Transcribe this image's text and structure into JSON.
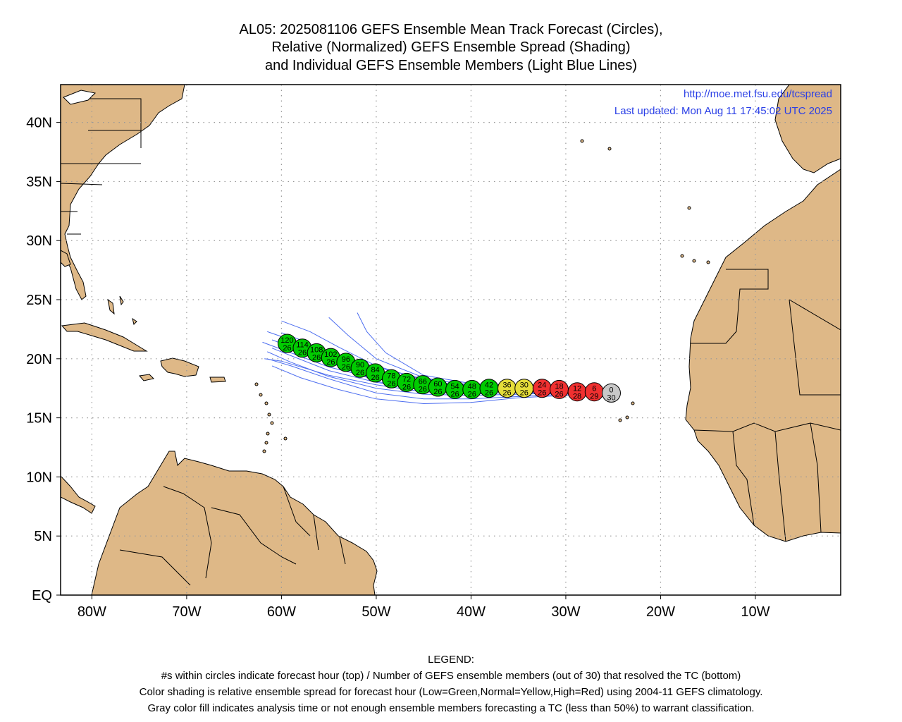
{
  "title": {
    "line1": "AL05: 2025081106 GEFS Ensemble Mean Track Forecast (Circles),",
    "line2": "Relative (Normalized) GEFS Ensemble Spread (Shading)",
    "line3": "and Individual GEFS Ensemble Members (Light Blue Lines)"
  },
  "header_links": {
    "url": "http://moe.met.fsu.edu/tcspread",
    "updated": "Last updated: Mon Aug 11 17:45:02 UTC 2025"
  },
  "axes": {
    "lon_labels": [
      "80W",
      "70W",
      "60W",
      "50W",
      "40W",
      "30W",
      "20W",
      "10W"
    ],
    "lon_values": [
      -80,
      -70,
      -60,
      -50,
      -40,
      -30,
      -20,
      -10
    ],
    "lat_labels": [
      "40N",
      "35N",
      "30N",
      "25N",
      "20N",
      "15N",
      "10N",
      "5N",
      "EQ"
    ],
    "lat_values": [
      40,
      35,
      30,
      25,
      20,
      15,
      10,
      5,
      0
    ],
    "lon_range": [
      -83.3,
      -1
    ],
    "lat_range": [
      0,
      43.2
    ]
  },
  "colors": {
    "land": "#deb887",
    "ocean": "#ffffff",
    "member_lines": "#4d6ef0",
    "low_spread": "#00cc00",
    "normal_spread": "#e5dd3a",
    "high_spread": "#f03030",
    "analysis": "#c8c8c8"
  },
  "track": [
    {
      "hour": "0",
      "members": "30",
      "lon": -25.2,
      "lat": 17.1,
      "spread": "gray"
    },
    {
      "hour": "6",
      "members": "29",
      "lon": -27.0,
      "lat": 17.2,
      "spread": "red"
    },
    {
      "hour": "12",
      "members": "28",
      "lon": -28.8,
      "lat": 17.2,
      "spread": "red"
    },
    {
      "hour": "18",
      "members": "26",
      "lon": -30.7,
      "lat": 17.4,
      "spread": "red"
    },
    {
      "hour": "24",
      "members": "26",
      "lon": -32.5,
      "lat": 17.5,
      "spread": "red"
    },
    {
      "hour": "30",
      "members": "26",
      "lon": -34.4,
      "lat": 17.5,
      "spread": "yellow"
    },
    {
      "hour": "36",
      "members": "26",
      "lon": -36.2,
      "lat": 17.5,
      "spread": "yellow"
    },
    {
      "hour": "42",
      "members": "26",
      "lon": -38.1,
      "lat": 17.5,
      "spread": "green"
    },
    {
      "hour": "48",
      "members": "26",
      "lon": -39.9,
      "lat": 17.4,
      "spread": "green"
    },
    {
      "hour": "54",
      "members": "26",
      "lon": -41.7,
      "lat": 17.4,
      "spread": "green"
    },
    {
      "hour": "60",
      "members": "26",
      "lon": -43.5,
      "lat": 17.6,
      "spread": "green"
    },
    {
      "hour": "66",
      "members": "26",
      "lon": -45.1,
      "lat": 17.8,
      "spread": "green"
    },
    {
      "hour": "72",
      "members": "26",
      "lon": -46.8,
      "lat": 18.0,
      "spread": "green"
    },
    {
      "hour": "78",
      "members": "26",
      "lon": -48.4,
      "lat": 18.3,
      "spread": "green"
    },
    {
      "hour": "84",
      "members": "26",
      "lon": -50.1,
      "lat": 18.8,
      "spread": "green"
    },
    {
      "hour": "90",
      "members": "26",
      "lon": -51.7,
      "lat": 19.2,
      "spread": "green"
    },
    {
      "hour": "96",
      "members": "26",
      "lon": -53.2,
      "lat": 19.7,
      "spread": "green"
    },
    {
      "hour": "102",
      "members": "26",
      "lon": -54.8,
      "lat": 20.1,
      "spread": "green"
    },
    {
      "hour": "108",
      "members": "26",
      "lon": -56.3,
      "lat": 20.5,
      "spread": "green"
    },
    {
      "hour": "114",
      "members": "26",
      "lon": -57.8,
      "lat": 20.9,
      "spread": "green"
    },
    {
      "hour": "120",
      "members": "26",
      "lon": -59.4,
      "lat": 21.3,
      "spread": "green"
    }
  ],
  "members": [
    [
      [
        -25.2,
        17.1
      ],
      [
        -30,
        17.3
      ],
      [
        -35,
        17.6
      ],
      [
        -40,
        17.5
      ],
      [
        -45,
        18.0
      ],
      [
        -50,
        19.0
      ],
      [
        -55,
        20.4
      ],
      [
        -59,
        21.6
      ],
      [
        -61.5,
        22.3
      ]
    ],
    [
      [
        -25.2,
        17.1
      ],
      [
        -30,
        17.1
      ],
      [
        -35,
        17.2
      ],
      [
        -40,
        17.0
      ],
      [
        -45,
        17.2
      ],
      [
        -50,
        17.8
      ],
      [
        -55,
        18.6
      ],
      [
        -60,
        19.8
      ],
      [
        -61.8,
        20.0
      ]
    ],
    [
      [
        -25.2,
        17.1
      ],
      [
        -30,
        17.5
      ],
      [
        -35,
        17.8
      ],
      [
        -40,
        17.9
      ],
      [
        -45,
        18.6
      ],
      [
        -49,
        20.5
      ],
      [
        -51,
        22.3
      ],
      [
        -52,
        23.9
      ]
    ],
    [
      [
        -25.2,
        17.1
      ],
      [
        -30,
        17.4
      ],
      [
        -35,
        17.6
      ],
      [
        -40,
        17.7
      ],
      [
        -45,
        18.4
      ],
      [
        -50,
        20.0
      ],
      [
        -53,
        22.0
      ],
      [
        -55,
        23.5
      ]
    ],
    [
      [
        -25.2,
        17.1
      ],
      [
        -30,
        17.0
      ],
      [
        -35,
        16.8
      ],
      [
        -40,
        16.6
      ],
      [
        -45,
        16.6
      ],
      [
        -50,
        17.1
      ],
      [
        -55,
        18.3
      ],
      [
        -59,
        19.4
      ],
      [
        -61.5,
        20.0
      ]
    ],
    [
      [
        -25.2,
        17.1
      ],
      [
        -30,
        17.2
      ],
      [
        -35,
        17.4
      ],
      [
        -40,
        17.3
      ],
      [
        -45,
        17.6
      ],
      [
        -50,
        18.3
      ],
      [
        -55,
        19.3
      ],
      [
        -60,
        20.8
      ],
      [
        -62,
        21.4
      ]
    ],
    [
      [
        -25.2,
        17.1
      ],
      [
        -30,
        16.9
      ],
      [
        -35,
        16.7
      ],
      [
        -40,
        16.3
      ],
      [
        -45,
        16.2
      ],
      [
        -50,
        16.6
      ],
      [
        -54,
        17.4
      ],
      [
        -58,
        18.4
      ],
      [
        -61,
        19.4
      ]
    ],
    [
      [
        -25.2,
        17.1
      ],
      [
        -30,
        17.3
      ],
      [
        -35,
        17.5
      ],
      [
        -40,
        17.6
      ],
      [
        -45,
        18.2
      ],
      [
        -50,
        19.4
      ],
      [
        -54,
        21.0
      ],
      [
        -57,
        22.3
      ],
      [
        -60,
        23.2
      ]
    ],
    [
      [
        -25.2,
        17.1
      ],
      [
        -30,
        17.2
      ],
      [
        -35,
        17.3
      ],
      [
        -40,
        17.2
      ],
      [
        -45,
        17.4
      ],
      [
        -50,
        18.0
      ],
      [
        -55,
        19.0
      ],
      [
        -58.5,
        20.1
      ],
      [
        -61,
        20.9
      ]
    ],
    [
      [
        -25.2,
        17.1
      ],
      [
        -30,
        17.1
      ],
      [
        -35,
        17.0
      ],
      [
        -40,
        16.9
      ],
      [
        -45,
        17.0
      ],
      [
        -50,
        17.5
      ],
      [
        -55,
        18.5
      ],
      [
        -59,
        19.7
      ],
      [
        -61.5,
        20.6
      ]
    ],
    [
      [
        -25.2,
        17.1
      ],
      [
        -30,
        17.4
      ],
      [
        -35,
        17.7
      ],
      [
        -40,
        17.8
      ],
      [
        -45,
        18.3
      ],
      [
        -50,
        19.3
      ],
      [
        -55,
        20.5
      ],
      [
        -58,
        21.6
      ],
      [
        -60,
        22.2
      ]
    ],
    [
      [
        -25.2,
        17.1
      ],
      [
        -30,
        17.0
      ],
      [
        -35,
        17.1
      ],
      [
        -40,
        17.1
      ],
      [
        -45,
        17.3
      ],
      [
        -50,
        18.1
      ],
      [
        -54,
        19.4
      ],
      [
        -58,
        20.7
      ],
      [
        -61,
        21.6
      ]
    ]
  ],
  "legend": {
    "heading": "LEGEND:",
    "line1": "#s within circles indicate forecast hour (top) / Number of GEFS ensemble members (out of 30) that resolved the TC (bottom)",
    "line2": "Color shading is relative ensemble spread for forecast hour (Low=Green,Normal=Yellow,High=Red) using 2004-11 GEFS climatology.",
    "line3": "Gray color fill indicates analysis time or not enough ensemble members forecasting a TC (less than 50%) to warrant classification."
  }
}
